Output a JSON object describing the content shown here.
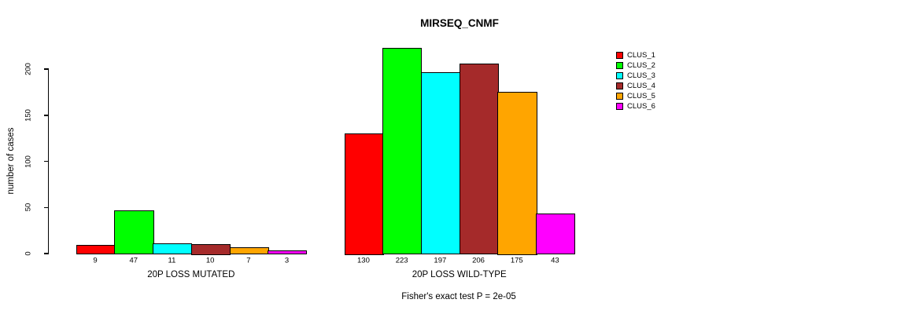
{
  "chart_data": {
    "type": "bar",
    "title": "MIRSEQ_CNMF",
    "ylabel": "number of cases",
    "xlabel": "",
    "yticks": [
      0,
      50,
      100,
      150,
      200
    ],
    "ylim": [
      0,
      235
    ],
    "grid": false,
    "legend_position": "right",
    "groups": [
      {
        "label": "20P LOSS MUTATED",
        "values": [
          9,
          47,
          11,
          10,
          7,
          3
        ]
      },
      {
        "label": "20P LOSS WILD-TYPE",
        "values": [
          130,
          223,
          197,
          206,
          175,
          43
        ]
      }
    ],
    "series": [
      {
        "name": "CLUS_1",
        "color": "#FF0000",
        "values": [
          9,
          130
        ]
      },
      {
        "name": "CLUS_2",
        "color": "#00FF00",
        "values": [
          47,
          223
        ]
      },
      {
        "name": "CLUS_3",
        "color": "#00FFFF",
        "values": [
          11,
          197
        ]
      },
      {
        "name": "CLUS_4",
        "color": "#A52A2A",
        "values": [
          10,
          206
        ]
      },
      {
        "name": "CLUS_5",
        "color": "#FFA500",
        "values": [
          7,
          175
        ]
      },
      {
        "name": "CLUS_6",
        "color": "#FF00FF",
        "values": [
          3,
          43
        ]
      }
    ],
    "caption": "Fisher's exact test P = 2e-05"
  }
}
